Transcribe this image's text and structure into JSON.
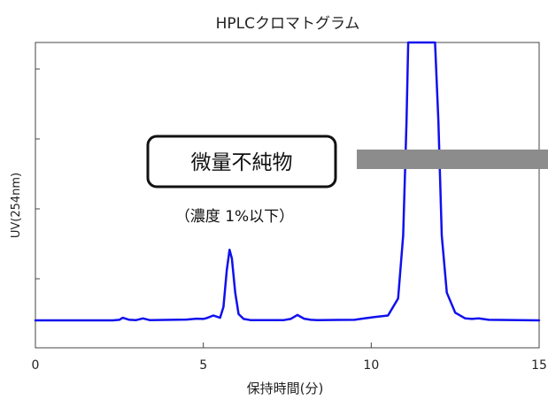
{
  "chart_data": {
    "type": "line",
    "title": "HPLCクロマトグラム",
    "xlabel": "保持時間(分)",
    "ylabel": "UV(254nm)",
    "xlim": [
      0,
      15
    ],
    "x_ticks": [
      0,
      5,
      10,
      15
    ],
    "grid": false,
    "series": [
      {
        "color": "#1010ee",
        "x": [
          0,
          2.3,
          2.5,
          2.6,
          2.8,
          3.0,
          3.2,
          3.4,
          4.5,
          4.8,
          5.0,
          5.1,
          5.3,
          5.5,
          5.6,
          5.7,
          5.78,
          5.85,
          5.95,
          6.05,
          6.2,
          6.4,
          7.4,
          7.6,
          7.8,
          8.0,
          8.2,
          8.4,
          9.5,
          9.8,
          10.1,
          10.5,
          10.8,
          10.95,
          11.05,
          11.1,
          11.2,
          11.6,
          11.9,
          12.0,
          12.1,
          12.25,
          12.5,
          12.8,
          13.0,
          13.2,
          13.5,
          15
        ],
        "y": [
          0.3,
          0.3,
          0.5,
          1.2,
          0.5,
          0.4,
          1.0,
          0.4,
          0.6,
          0.9,
          0.8,
          1.1,
          2.0,
          1.2,
          5.0,
          18.0,
          25.0,
          22.0,
          10.0,
          2.5,
          0.8,
          0.4,
          0.4,
          0.8,
          2.2,
          0.9,
          0.5,
          0.4,
          0.5,
          1.0,
          1.5,
          2.0,
          8.0,
          30.0,
          70.0,
          100.0,
          100.0,
          100.0,
          100.0,
          70.0,
          30.0,
          10.0,
          3.0,
          1.0,
          0.8,
          1.0,
          0.5,
          0.3
        ]
      }
    ],
    "annotations": [
      {
        "box_label": "微量不純物",
        "note": "（濃度 1%以下）"
      }
    ],
    "arrow_color": "#8c8c8c"
  }
}
